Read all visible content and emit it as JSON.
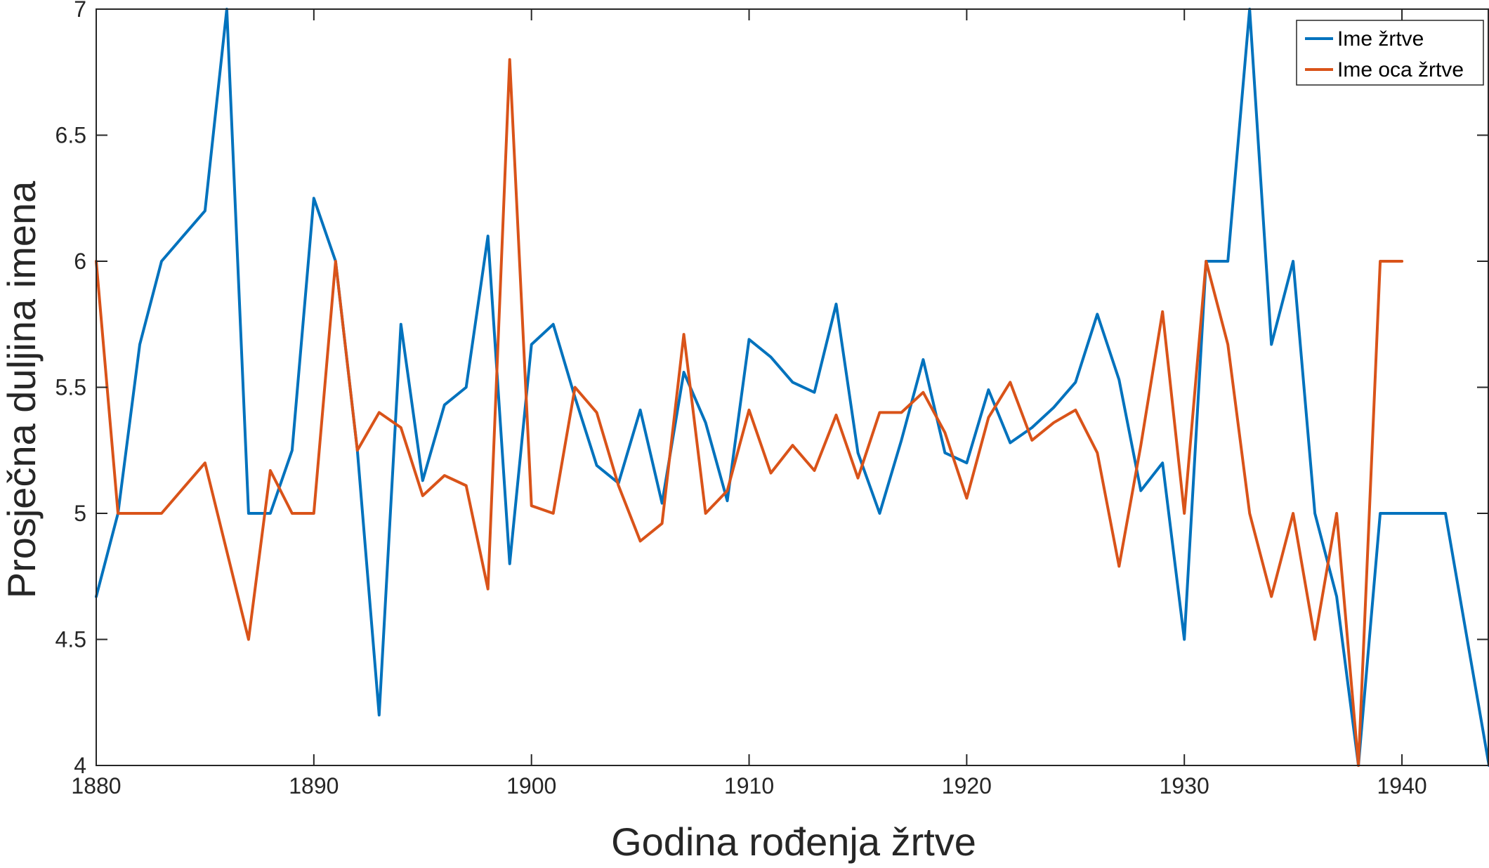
{
  "chart_data": {
    "type": "line",
    "title": "",
    "xlabel": "Godina rođenja žrtve",
    "ylabel": "Prosječna duljina imena",
    "xlim": [
      1880,
      1944
    ],
    "ylim": [
      4,
      7
    ],
    "xticks": [
      1880,
      1890,
      1900,
      1910,
      1920,
      1930,
      1940
    ],
    "yticks": [
      4,
      4.5,
      5,
      5.5,
      6,
      6.5,
      7
    ],
    "grid": false,
    "legend_position": "top-right",
    "series": [
      {
        "name": "Ime žrtve",
        "color": "#0072BD",
        "points": [
          [
            1880,
            4.67
          ],
          [
            1881,
            5.0
          ],
          [
            1882,
            5.67
          ],
          [
            1883,
            6.0
          ],
          [
            1884,
            6.1
          ],
          [
            1885,
            6.2
          ],
          [
            1886,
            7.0
          ],
          [
            1887,
            5.0
          ],
          [
            1888,
            5.0
          ],
          [
            1889,
            5.25
          ],
          [
            1890,
            6.25
          ],
          [
            1891,
            6.0
          ],
          [
            1892,
            5.25
          ],
          [
            1893,
            4.2
          ],
          [
            1894,
            5.75
          ],
          [
            1895,
            5.13
          ],
          [
            1896,
            5.43
          ],
          [
            1897,
            5.5
          ],
          [
            1898,
            6.1
          ],
          [
            1899,
            4.8
          ],
          [
            1900,
            5.67
          ],
          [
            1901,
            5.75
          ],
          [
            1902,
            5.46
          ],
          [
            1903,
            5.19
          ],
          [
            1904,
            5.12
          ],
          [
            1905,
            5.41
          ],
          [
            1906,
            5.04
          ],
          [
            1907,
            5.56
          ],
          [
            1908,
            5.36
          ],
          [
            1909,
            5.05
          ],
          [
            1910,
            5.69
          ],
          [
            1911,
            5.62
          ],
          [
            1912,
            5.52
          ],
          [
            1913,
            5.48
          ],
          [
            1914,
            5.83
          ],
          [
            1915,
            5.24
          ],
          [
            1916,
            5.0
          ],
          [
            1917,
            5.29
          ],
          [
            1918,
            5.61
          ],
          [
            1919,
            5.24
          ],
          [
            1920,
            5.2
          ],
          [
            1921,
            5.49
          ],
          [
            1922,
            5.28
          ],
          [
            1923,
            5.34
          ],
          [
            1924,
            5.42
          ],
          [
            1925,
            5.52
          ],
          [
            1926,
            5.79
          ],
          [
            1927,
            5.53
          ],
          [
            1928,
            5.09
          ],
          [
            1929,
            5.2
          ],
          [
            1930,
            4.5
          ],
          [
            1931,
            6.0
          ],
          [
            1932,
            6.0
          ],
          [
            1933,
            7.0
          ],
          [
            1934,
            5.67
          ],
          [
            1935,
            6.0
          ],
          [
            1936,
            5.0
          ],
          [
            1937,
            4.67
          ],
          [
            1938,
            4.0
          ],
          [
            1939,
            5.0
          ],
          [
            1940,
            5.0
          ],
          [
            1941,
            5.0
          ],
          [
            1942,
            5.0
          ],
          [
            1944,
            4.0
          ]
        ]
      },
      {
        "name": "Ime oca žrtve",
        "color": "#D95319",
        "points": [
          [
            1880,
            6.0
          ],
          [
            1881,
            5.0
          ],
          [
            1882,
            5.0
          ],
          [
            1883,
            5.0
          ],
          [
            1884,
            5.1
          ],
          [
            1885,
            5.2
          ],
          [
            1886,
            4.85
          ],
          [
            1887,
            4.5
          ],
          [
            1888,
            5.17
          ],
          [
            1889,
            5.0
          ],
          [
            1890,
            5.0
          ],
          [
            1891,
            6.0
          ],
          [
            1892,
            5.25
          ],
          [
            1893,
            5.4
          ],
          [
            1894,
            5.34
          ],
          [
            1895,
            5.07
          ],
          [
            1896,
            5.15
          ],
          [
            1897,
            5.11
          ],
          [
            1898,
            4.7
          ],
          [
            1899,
            6.8
          ],
          [
            1900,
            5.03
          ],
          [
            1901,
            5.0
          ],
          [
            1902,
            5.5
          ],
          [
            1903,
            5.4
          ],
          [
            1904,
            5.11
          ],
          [
            1905,
            4.89
          ],
          [
            1906,
            4.96
          ],
          [
            1907,
            5.71
          ],
          [
            1908,
            5.0
          ],
          [
            1909,
            5.09
          ],
          [
            1910,
            5.41
          ],
          [
            1911,
            5.16
          ],
          [
            1912,
            5.27
          ],
          [
            1913,
            5.17
          ],
          [
            1914,
            5.39
          ],
          [
            1915,
            5.14
          ],
          [
            1916,
            5.4
          ],
          [
            1917,
            5.4
          ],
          [
            1918,
            5.48
          ],
          [
            1919,
            5.32
          ],
          [
            1920,
            5.06
          ],
          [
            1921,
            5.38
          ],
          [
            1922,
            5.52
          ],
          [
            1923,
            5.29
          ],
          [
            1924,
            5.36
          ],
          [
            1925,
            5.41
          ],
          [
            1926,
            5.24
          ],
          [
            1927,
            4.79
          ],
          [
            1928,
            5.27
          ],
          [
            1929,
            5.8
          ],
          [
            1930,
            5.0
          ],
          [
            1931,
            6.0
          ],
          [
            1932,
            5.67
          ],
          [
            1933,
            5.0
          ],
          [
            1934,
            4.67
          ],
          [
            1935,
            5.0
          ],
          [
            1936,
            4.5
          ],
          [
            1937,
            5.0
          ],
          [
            1938,
            4.0
          ],
          [
            1939,
            6.0
          ],
          [
            1940,
            6.0
          ]
        ]
      }
    ]
  }
}
